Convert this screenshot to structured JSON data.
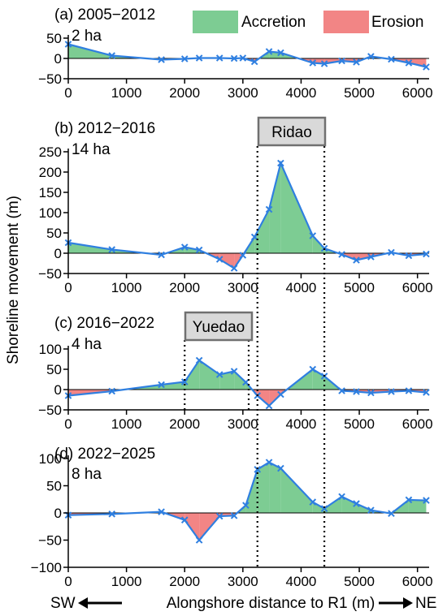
{
  "legend": {
    "accretion_label": "Accretion",
    "erosion_label": "Erosion",
    "accretion_color": "#7dcc93",
    "erosion_color": "#f28585"
  },
  "line_color": "#2f7fe0",
  "y_label": "Shoreline movement (m)",
  "x_label": "Alongshore distance to R1 (m)",
  "x_left": "SW",
  "x_right": "NE",
  "callouts": {
    "ridao": "Ridao",
    "yuedao": "Yuedao"
  },
  "chart_data": [
    {
      "type": "area",
      "title": "(a) 2005−2012",
      "subtitle": "2 ha",
      "xlim": [
        0,
        6200
      ],
      "ylim": [
        -50,
        50
      ],
      "yticks": [
        -50,
        0,
        50
      ],
      "xticks": [
        0,
        1000,
        2000,
        3000,
        4000,
        5000,
        6000
      ],
      "x": [
        0,
        750,
        1600,
        2000,
        2250,
        2600,
        2850,
        3000,
        3200,
        3450,
        3650,
        4200,
        4400,
        4700,
        4950,
        5200,
        5550,
        5850,
        6150
      ],
      "y": [
        35,
        7,
        -3,
        -1,
        1,
        1,
        0,
        1,
        -8,
        17,
        14,
        -11,
        -13,
        -6,
        -9,
        5,
        -2,
        -11,
        -21
      ]
    },
    {
      "type": "area",
      "title": "(b) 2012−2016",
      "subtitle": "14 ha",
      "xlim": [
        0,
        6200
      ],
      "ylim": [
        -50,
        250
      ],
      "yticks": [
        -50,
        0,
        50,
        100,
        150,
        200,
        250
      ],
      "xticks": [
        0,
        1000,
        2000,
        3000,
        4000,
        5000,
        6000
      ],
      "x": [
        0,
        750,
        1600,
        2000,
        2250,
        2600,
        2850,
        3000,
        3200,
        3450,
        3650,
        4200,
        4400,
        4700,
        4950,
        5200,
        5550,
        5850,
        6150
      ],
      "y": [
        26,
        9,
        -4,
        15,
        8,
        -15,
        -37,
        -5,
        40,
        108,
        222,
        43,
        12,
        -3,
        -17,
        -9,
        2,
        -6,
        -2
      ]
    },
    {
      "type": "area",
      "title": "(c) 2016−2022",
      "subtitle": "4 ha",
      "xlim": [
        0,
        6200
      ],
      "ylim": [
        -50,
        100
      ],
      "yticks": [
        -50,
        0,
        50,
        100
      ],
      "xticks": [
        0,
        1000,
        2000,
        3000,
        4000,
        5000,
        6000
      ],
      "x": [
        0,
        750,
        1600,
        2000,
        2250,
        2600,
        2850,
        3050,
        3250,
        3450,
        3650,
        4200,
        4400,
        4700,
        4950,
        5200,
        5550,
        5850,
        6150
      ],
      "y": [
        -15,
        -4,
        12,
        19,
        72,
        37,
        45,
        18,
        -15,
        -40,
        -12,
        50,
        33,
        -3,
        -5,
        -8,
        -5,
        -3,
        -7
      ]
    },
    {
      "type": "area",
      "title": "(d) 2022−2025",
      "subtitle": "8 ha",
      "xlim": [
        0,
        6200
      ],
      "ylim": [
        -100,
        100
      ],
      "yticks": [
        -100,
        -50,
        0,
        50,
        100
      ],
      "xticks": [
        0,
        1000,
        2000,
        3000,
        4000,
        5000,
        6000
      ],
      "x": [
        0,
        750,
        1600,
        2000,
        2250,
        2600,
        2850,
        3050,
        3250,
        3450,
        3650,
        4200,
        4400,
        4700,
        4950,
        5200,
        5550,
        5850,
        6150
      ],
      "y": [
        -4,
        -2,
        2,
        -13,
        -50,
        -6,
        -5,
        14,
        80,
        93,
        82,
        20,
        8,
        30,
        17,
        5,
        -1,
        24,
        23
      ]
    }
  ],
  "reference_lines_x": [
    3250,
    4400,
    2000,
    3100
  ]
}
